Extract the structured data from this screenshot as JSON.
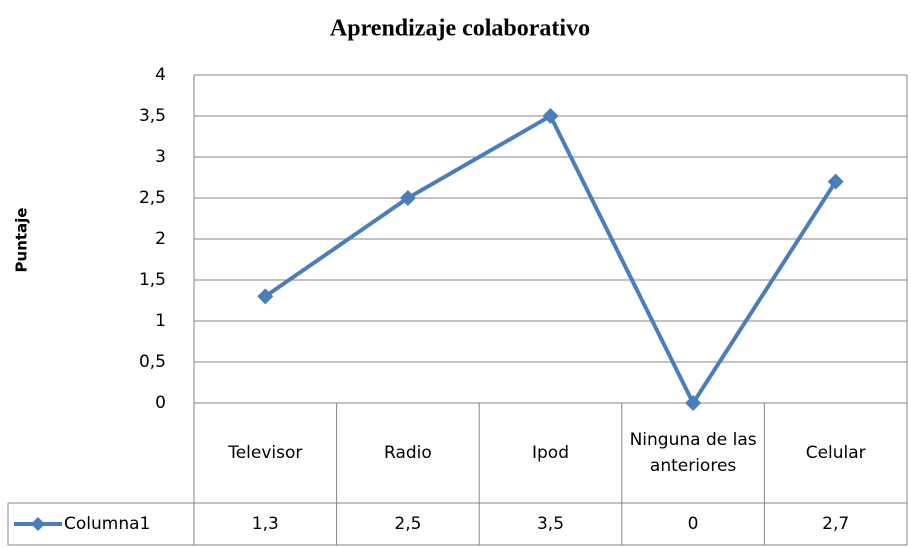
{
  "chart_data": {
    "type": "line",
    "title": "Aprendizaje colaborativo",
    "y_label": "Puntaje",
    "categories": [
      "Televisor",
      "Radio",
      "Ipod",
      "Ninguna de las anteriores",
      "Celular"
    ],
    "series": [
      {
        "name": "Columna1",
        "color": "#4a7ebb",
        "values": [
          1.3,
          2.5,
          3.5,
          0,
          2.7
        ],
        "value_labels": [
          "1,3",
          "2,5",
          "3,5",
          "0",
          "2,7"
        ]
      }
    ],
    "ylim": [
      0,
      4
    ],
    "yticks": [
      0,
      {
        "value": 0.5,
        "label": "0,5"
      },
      1,
      {
        "value": 1.5,
        "label": "1,5"
      },
      2,
      {
        "value": 2.5,
        "label": "2,5"
      },
      3,
      {
        "value": 3.5,
        "label": "3,5"
      },
      4
    ],
    "grid": true,
    "data_table": true
  }
}
